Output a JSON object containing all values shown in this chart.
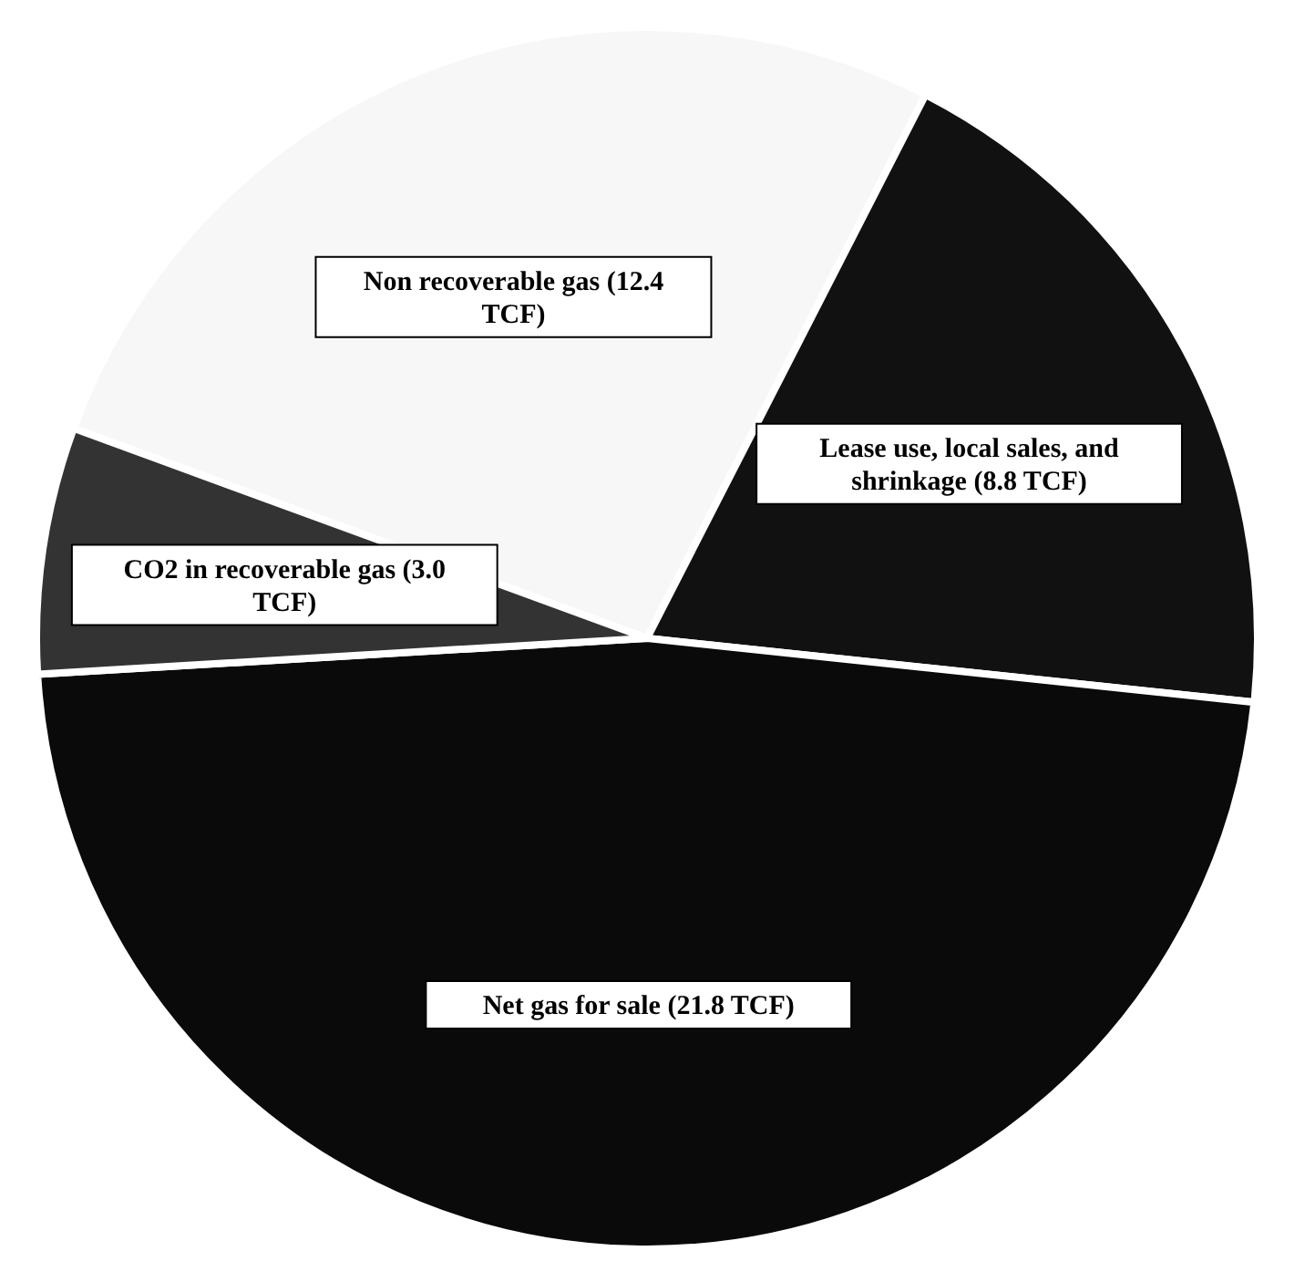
{
  "chart_data": {
    "type": "pie",
    "categories": [
      "Non recoverable gas (12.4 TCF)",
      "Lease use, local sales, and shrinkage (8.8 TCF)",
      "Net gas for sale (21.8 TCF)",
      "CO2 in recoverable gas (3.0 TCF)"
    ],
    "values": [
      12.4,
      8.8,
      21.8,
      3.0
    ],
    "colors": [
      "#f7f7f7",
      "#111111",
      "#0a0a0a",
      "#333333"
    ],
    "legend": false
  }
}
